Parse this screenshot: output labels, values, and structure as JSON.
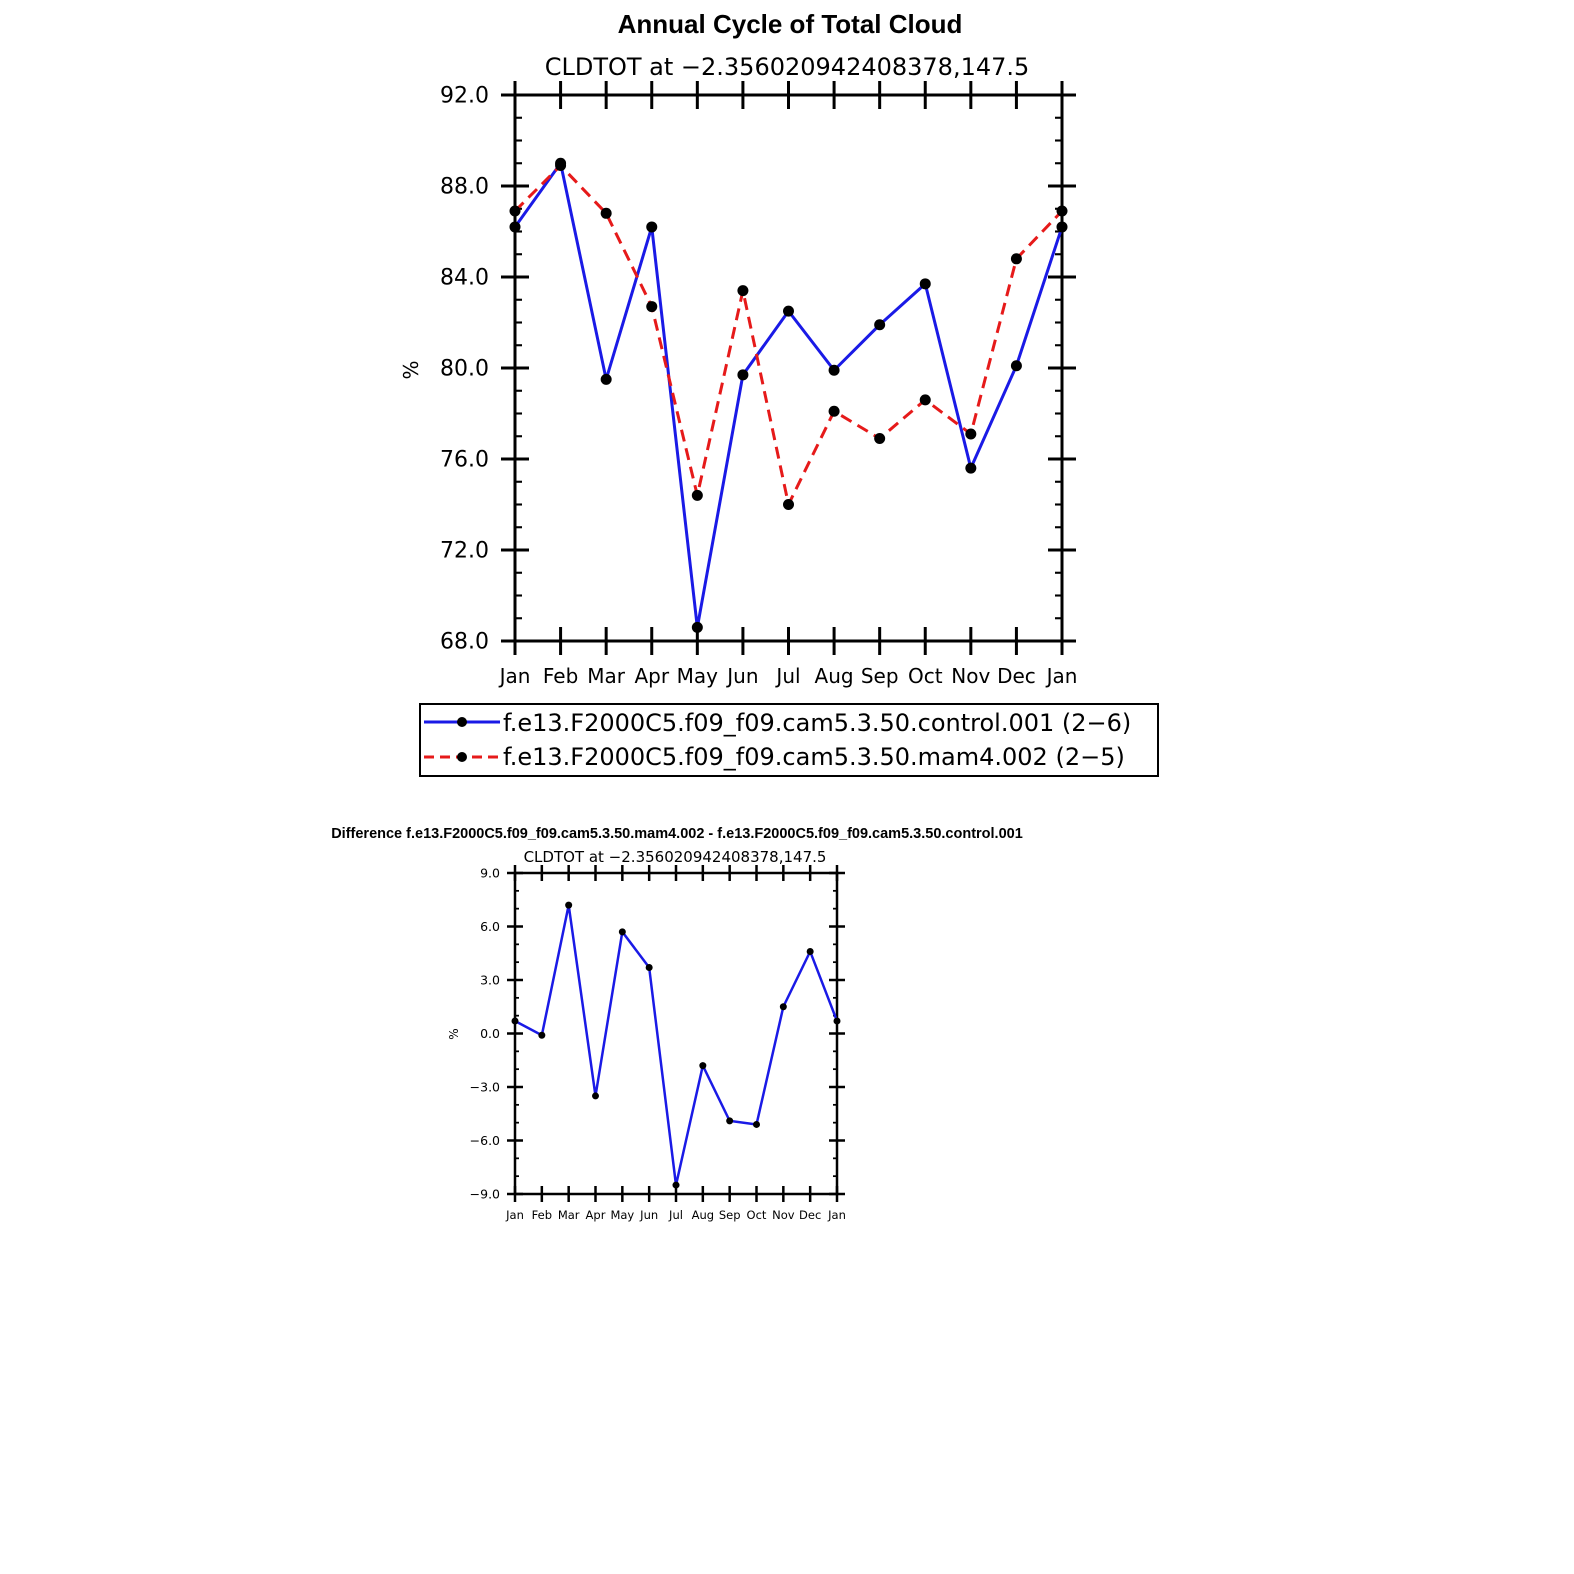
{
  "chart_data": [
    {
      "type": "line",
      "title": "Annual Cycle of Total Cloud",
      "subtitle": "CLDTOT at −2.356020942408378,147.5",
      "ylabel": "%",
      "xlabel": "",
      "ylim": [
        68.0,
        92.0
      ],
      "yticks": [
        "92.0",
        "88.0",
        "84.0",
        "80.0",
        "76.0",
        "72.0",
        "68.0"
      ],
      "ytick_values": [
        92,
        88,
        84,
        80,
        76,
        72,
        68
      ],
      "categories": [
        "Jan",
        "Feb",
        "Mar",
        "Apr",
        "May",
        "Jun",
        "Jul",
        "Aug",
        "Sep",
        "Oct",
        "Nov",
        "Dec",
        "Jan"
      ],
      "series": [
        {
          "name": "f.e13.F2000C5.f09_f09.cam5.3.50.control.001 (2−6)",
          "color": "#1a1ae6",
          "dash": "solid",
          "values": [
            86.2,
            89.0,
            79.5,
            86.2,
            68.6,
            79.7,
            82.5,
            79.9,
            81.9,
            83.7,
            75.6,
            80.1,
            86.2
          ]
        },
        {
          "name": "f.e13.F2000C5.f09_f09.cam5.3.50.mam4.002 (2−5)",
          "color": "#e61a1a",
          "dash": "dashed",
          "values": [
            86.9,
            88.9,
            86.8,
            82.7,
            74.4,
            83.4,
            74.0,
            78.1,
            76.9,
            78.6,
            77.1,
            84.8,
            86.9
          ]
        }
      ]
    },
    {
      "type": "line",
      "title": "Difference f.e13.F2000C5.f09_f09.cam5.3.50.mam4.002 - f.e13.F2000C5.f09_f09.cam5.3.50.control.001",
      "subtitle": "CLDTOT at −2.356020942408378,147.5",
      "ylabel": "%",
      "xlabel": "",
      "ylim": [
        -9.0,
        9.0
      ],
      "yticks": [
        "9.0",
        "6.0",
        "3.0",
        "0.0",
        "−3.0",
        "−6.0",
        "−9.0"
      ],
      "ytick_values": [
        9,
        6,
        3,
        0,
        -3,
        -6,
        -9
      ],
      "categories": [
        "Jan",
        "Feb",
        "Mar",
        "Apr",
        "May",
        "Jun",
        "Jul",
        "Aug",
        "Sep",
        "Oct",
        "Nov",
        "Dec",
        "Jan"
      ],
      "series": [
        {
          "name": "difference",
          "color": "#1a1ae6",
          "dash": "solid",
          "values": [
            0.7,
            -0.1,
            7.2,
            -3.5,
            5.7,
            3.7,
            -8.5,
            -1.8,
            -4.9,
            -5.1,
            1.5,
            4.6,
            0.7
          ]
        }
      ]
    }
  ]
}
